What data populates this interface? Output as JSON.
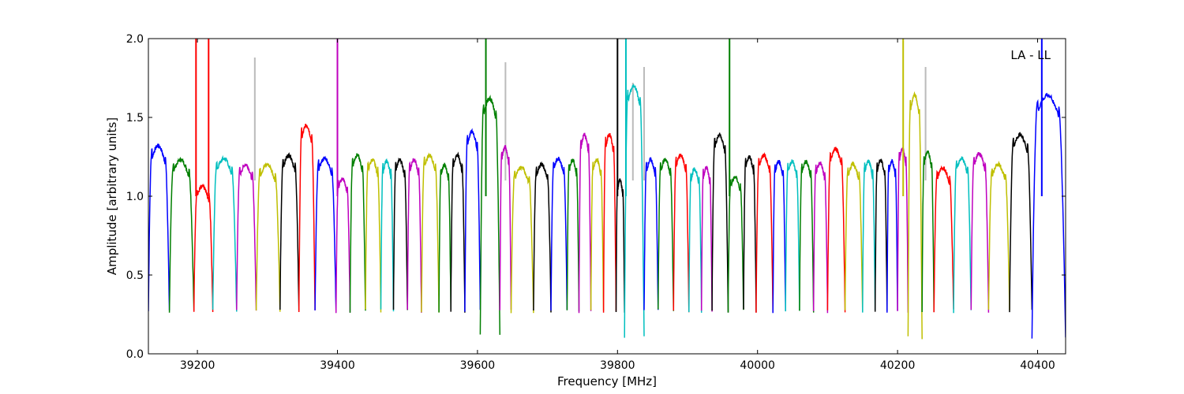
{
  "chart_data": {
    "type": "line",
    "title": "",
    "xlabel": "Frequency [MHz]",
    "ylabel": "Amplitude [arbitrary units]",
    "annotation": "LA - LL",
    "xlim": [
      39130,
      40440
    ],
    "ylim": [
      0.0,
      2.0
    ],
    "xticks": [
      39200,
      39400,
      39600,
      39800,
      40000,
      40200,
      40400
    ],
    "xtick_labels": [
      "39200",
      "39400",
      "39600",
      "39800",
      "40000",
      "40200",
      "40400"
    ],
    "yticks": [
      0.0,
      0.5,
      1.0,
      1.5,
      2.0
    ],
    "ytick_labels": [
      "0.0",
      "0.5",
      "1.0",
      "1.5",
      "2.0"
    ],
    "grid": false,
    "background_line_color": "#bbbbbb",
    "colors": {
      "blue": "#0000ff",
      "green": "#007f00",
      "red": "#ff0000",
      "cyan": "#00bfbf",
      "magenta": "#bf00bf",
      "yellow": "#bfbf00",
      "black": "#000000"
    },
    "segments": [
      {
        "color": "blue",
        "start": 39130,
        "end": 39160,
        "peak": 1.34
      },
      {
        "color": "green",
        "start": 39160,
        "end": 39195,
        "peak": 1.25
      },
      {
        "color": "red",
        "start": 39195,
        "end": 39222,
        "peak": 1.08,
        "spikes": [
          39198,
          39216
        ]
      },
      {
        "color": "cyan",
        "start": 39222,
        "end": 39256,
        "peak": 1.26
      },
      {
        "color": "magenta",
        "start": 39256,
        "end": 39284,
        "peak": 1.22
      },
      {
        "color": "yellow",
        "start": 39284,
        "end": 39318,
        "peak": 1.22
      },
      {
        "color": "black",
        "start": 39318,
        "end": 39345,
        "peak": 1.28
      },
      {
        "color": "red",
        "start": 39345,
        "end": 39368,
        "peak": 1.47
      },
      {
        "color": "blue",
        "start": 39368,
        "end": 39398,
        "peak": 1.26
      },
      {
        "color": "magenta",
        "start": 39398,
        "end": 39418,
        "peak": 1.13,
        "spikes": [
          39400
        ]
      },
      {
        "color": "green",
        "start": 39418,
        "end": 39440,
        "peak": 1.28
      },
      {
        "color": "yellow",
        "start": 39440,
        "end": 39462,
        "peak": 1.25
      },
      {
        "color": "cyan",
        "start": 39462,
        "end": 39480,
        "peak": 1.24
      },
      {
        "color": "black",
        "start": 39480,
        "end": 39500,
        "peak": 1.25
      },
      {
        "color": "magenta",
        "start": 39500,
        "end": 39520,
        "peak": 1.25
      },
      {
        "color": "yellow",
        "start": 39520,
        "end": 39545,
        "peak": 1.28
      },
      {
        "color": "green",
        "start": 39545,
        "end": 39562,
        "peak": 1.22
      },
      {
        "color": "black",
        "start": 39562,
        "end": 39582,
        "peak": 1.28
      },
      {
        "color": "blue",
        "start": 39582,
        "end": 39604,
        "peak": 1.43
      },
      {
        "color": "green",
        "start": 39604,
        "end": 39632,
        "peak": 1.64,
        "dip": 0.12,
        "spikes": [
          39612
        ]
      },
      {
        "color": "magenta",
        "start": 39632,
        "end": 39648,
        "peak": 1.33
      },
      {
        "color": "yellow",
        "start": 39648,
        "end": 39680,
        "peak": 1.2
      },
      {
        "color": "black",
        "start": 39680,
        "end": 39705,
        "peak": 1.22
      },
      {
        "color": "blue",
        "start": 39705,
        "end": 39728,
        "peak": 1.26
      },
      {
        "color": "green",
        "start": 39728,
        "end": 39745,
        "peak": 1.25
      },
      {
        "color": "magenta",
        "start": 39745,
        "end": 39762,
        "peak": 1.41
      },
      {
        "color": "yellow",
        "start": 39762,
        "end": 39780,
        "peak": 1.25
      },
      {
        "color": "red",
        "start": 39780,
        "end": 39798,
        "peak": 1.41
      },
      {
        "color": "black",
        "start": 39798,
        "end": 39810,
        "peak": 1.12,
        "spikes": [
          39800
        ]
      },
      {
        "color": "cyan",
        "start": 39810,
        "end": 39838,
        "peak": 1.72,
        "dip": 0.1,
        "spikes": [
          39812
        ]
      },
      {
        "color": "blue",
        "start": 39838,
        "end": 39858,
        "peak": 1.25
      },
      {
        "color": "green",
        "start": 39858,
        "end": 39880,
        "peak": 1.25
      },
      {
        "color": "red",
        "start": 39880,
        "end": 39902,
        "peak": 1.28
      },
      {
        "color": "cyan",
        "start": 39902,
        "end": 39920,
        "peak": 1.19
      },
      {
        "color": "magenta",
        "start": 39920,
        "end": 39935,
        "peak": 1.2
      },
      {
        "color": "black",
        "start": 39935,
        "end": 39958,
        "peak": 1.41
      },
      {
        "color": "green",
        "start": 39958,
        "end": 39980,
        "peak": 1.14,
        "spikes": [
          39960
        ]
      },
      {
        "color": "black",
        "start": 39980,
        "end": 39998,
        "peak": 1.27
      },
      {
        "color": "red",
        "start": 39998,
        "end": 40022,
        "peak": 1.28
      },
      {
        "color": "blue",
        "start": 40022,
        "end": 40040,
        "peak": 1.24
      },
      {
        "color": "cyan",
        "start": 40040,
        "end": 40060,
        "peak": 1.24
      },
      {
        "color": "green",
        "start": 40060,
        "end": 40080,
        "peak": 1.24
      },
      {
        "color": "magenta",
        "start": 40080,
        "end": 40100,
        "peak": 1.23
      },
      {
        "color": "red",
        "start": 40100,
        "end": 40125,
        "peak": 1.32
      },
      {
        "color": "yellow",
        "start": 40125,
        "end": 40150,
        "peak": 1.22
      },
      {
        "color": "cyan",
        "start": 40150,
        "end": 40168,
        "peak": 1.24
      },
      {
        "color": "black",
        "start": 40168,
        "end": 40185,
        "peak": 1.25
      },
      {
        "color": "blue",
        "start": 40185,
        "end": 40200,
        "peak": 1.24
      },
      {
        "color": "magenta",
        "start": 40200,
        "end": 40215,
        "peak": 1.32
      },
      {
        "color": "yellow",
        "start": 40215,
        "end": 40235,
        "peak": 1.66,
        "dip": 0.1,
        "spikes": [
          40208
        ]
      },
      {
        "color": "green",
        "start": 40235,
        "end": 40252,
        "peak": 1.3
      },
      {
        "color": "red",
        "start": 40252,
        "end": 40280,
        "peak": 1.2
      },
      {
        "color": "cyan",
        "start": 40280,
        "end": 40305,
        "peak": 1.26
      },
      {
        "color": "magenta",
        "start": 40305,
        "end": 40330,
        "peak": 1.29
      },
      {
        "color": "yellow",
        "start": 40330,
        "end": 40360,
        "peak": 1.22
      },
      {
        "color": "black",
        "start": 40360,
        "end": 40392,
        "peak": 1.41
      },
      {
        "color": "blue",
        "start": 40392,
        "end": 40440,
        "peak": 1.66,
        "dip": 0.1,
        "spikes": [
          40406
        ]
      }
    ],
    "grey_spikes": [
      {
        "x": 39282,
        "y": 1.88
      },
      {
        "x": 39640,
        "y": 1.85
      },
      {
        "x": 39822,
        "y": 1.72
      },
      {
        "x": 39838,
        "y": 1.82
      },
      {
        "x": 40240,
        "y": 1.82
      }
    ]
  }
}
